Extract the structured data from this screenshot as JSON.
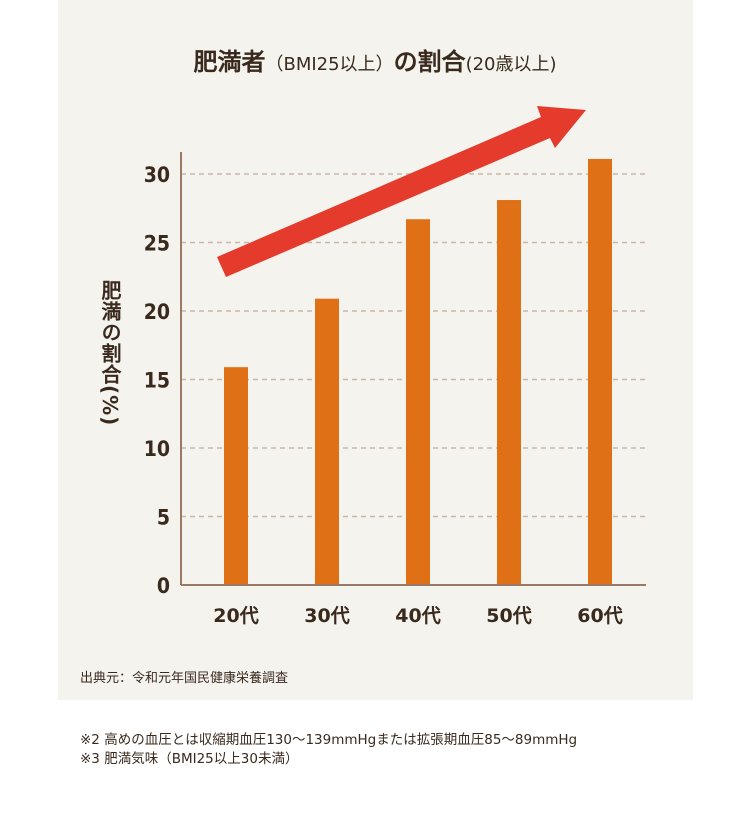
{
  "title": {
    "main": "肥満者",
    "paren": "（BMI25以上）",
    "mid": "の割合",
    "suffix": "(20歳以上)"
  },
  "chart_data": {
    "type": "bar",
    "title": "肥満者（BMI25以上）の割合(20歳以上)",
    "ylabel": "肥満の割合(%)",
    "xlabel": "",
    "categories": [
      "20代",
      "30代",
      "40代",
      "50代",
      "60代"
    ],
    "values": [
      15.9,
      20.9,
      26.7,
      28.1,
      31.1
    ],
    "ylim": [
      0,
      30
    ],
    "yticks": [
      0,
      5,
      10,
      15,
      20,
      25,
      30
    ],
    "grid": true,
    "bar_color": "#e07016",
    "annotation": "red upward trend arrow",
    "arrow_color": "#e43b2c"
  },
  "source": "出典元：令和元年国民健康栄養調査",
  "notes": [
    "※2 高めの血圧とは収縮期血圧130〜139mmHgまたは拡張期血圧85〜89mmHg",
    "※3 肥満気味（BMI25以上30未満）"
  ]
}
